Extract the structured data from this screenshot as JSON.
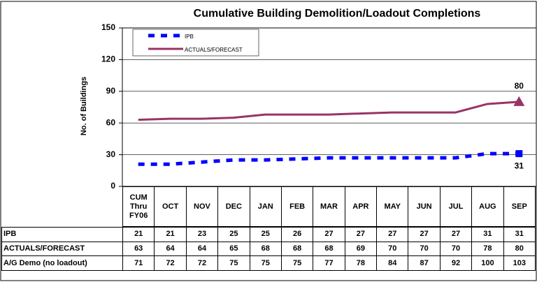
{
  "chart_data": {
    "type": "line",
    "title": "Cumulative Building Demolition/Loadout Completions",
    "y_label": "No. of Buildings",
    "categories": [
      "CUM Thru FY06",
      "OCT",
      "NOV",
      "DEC",
      "JAN",
      "FEB",
      "MAR",
      "APR",
      "MAY",
      "JUN",
      "JUL",
      "AUG",
      "SEP"
    ],
    "series": [
      {
        "name": "IPB",
        "color": "#0000ff",
        "values": [
          21,
          21,
          23,
          25,
          25,
          26,
          27,
          27,
          27,
          27,
          27,
          31,
          31
        ]
      },
      {
        "name": "ACTUALS/FORECAST",
        "color": "#993366",
        "values": [
          63,
          64,
          64,
          65,
          68,
          68,
          68,
          69,
          70,
          70,
          70,
          78,
          80
        ]
      }
    ],
    "table_rows": [
      {
        "name": "A/G Demo (no loadout)",
        "values": [
          71,
          72,
          72,
          75,
          75,
          75,
          77,
          78,
          84,
          87,
          92,
          100,
          103
        ]
      }
    ],
    "ylim": [
      0,
      150
    ],
    "yticks": [
      0,
      30,
      60,
      90,
      120,
      150
    ],
    "grid": true
  }
}
